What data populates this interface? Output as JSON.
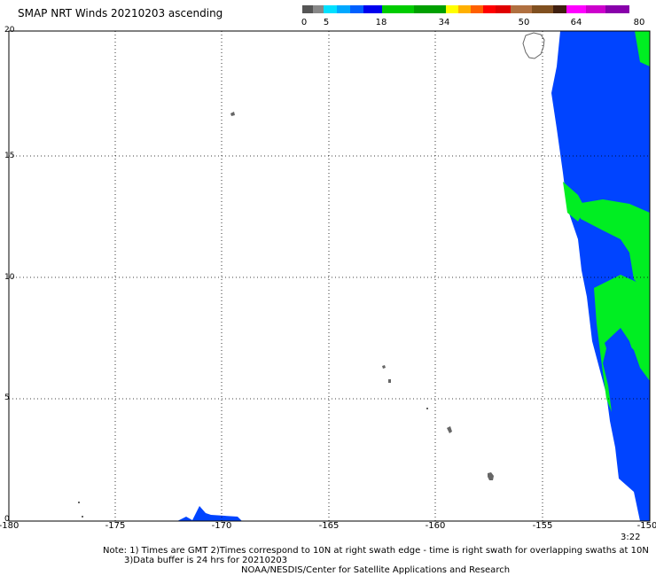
{
  "title": "SMAP NRT Winds 20210203 ascending",
  "colorbar": {
    "labels": [
      "0",
      "5",
      "18",
      "34",
      "50",
      "64",
      "80"
    ],
    "segments": [
      {
        "color": "#555555"
      },
      {
        "color": "#888888"
      },
      {
        "color": "#00e0ff"
      },
      {
        "color": "#00a8ff"
      },
      {
        "color": "#0060ff"
      },
      {
        "color": "#0000ee"
      },
      {
        "color": "#00cc00"
      },
      {
        "color": "#00a000"
      },
      {
        "color": "#ffff00"
      },
      {
        "color": "#ffb000"
      },
      {
        "color": "#ff6000"
      },
      {
        "color": "#ff0000"
      },
      {
        "color": "#e00000"
      },
      {
        "color": "#b07040"
      },
      {
        "color": "#805020"
      },
      {
        "color": "#402010"
      },
      {
        "color": "#ff00ff"
      },
      {
        "color": "#cc00cc"
      },
      {
        "color": "#8800aa"
      }
    ]
  },
  "map": {
    "x_ticks": [
      "-180",
      "-175",
      "-170",
      "-165",
      "-160",
      "-155",
      "-150"
    ],
    "y_ticks": [
      "0",
      "5",
      "10",
      "15",
      "20"
    ],
    "wind_colors": {
      "low": "#0044ff",
      "mid": "#00ee22",
      "bright": "#1060ff"
    },
    "land_color": "#666666"
  },
  "time_label": "3:22",
  "notes": {
    "line1": "Note: 1) Times are GMT 2)Times correspond to 10N at right swath edge - time is right swath for overlapping swaths at 10N",
    "line2": "3)Data buffer is 24 hrs for 20210203",
    "line3": "NOAA/NESDIS/Center for Satellite Applications and Research"
  }
}
